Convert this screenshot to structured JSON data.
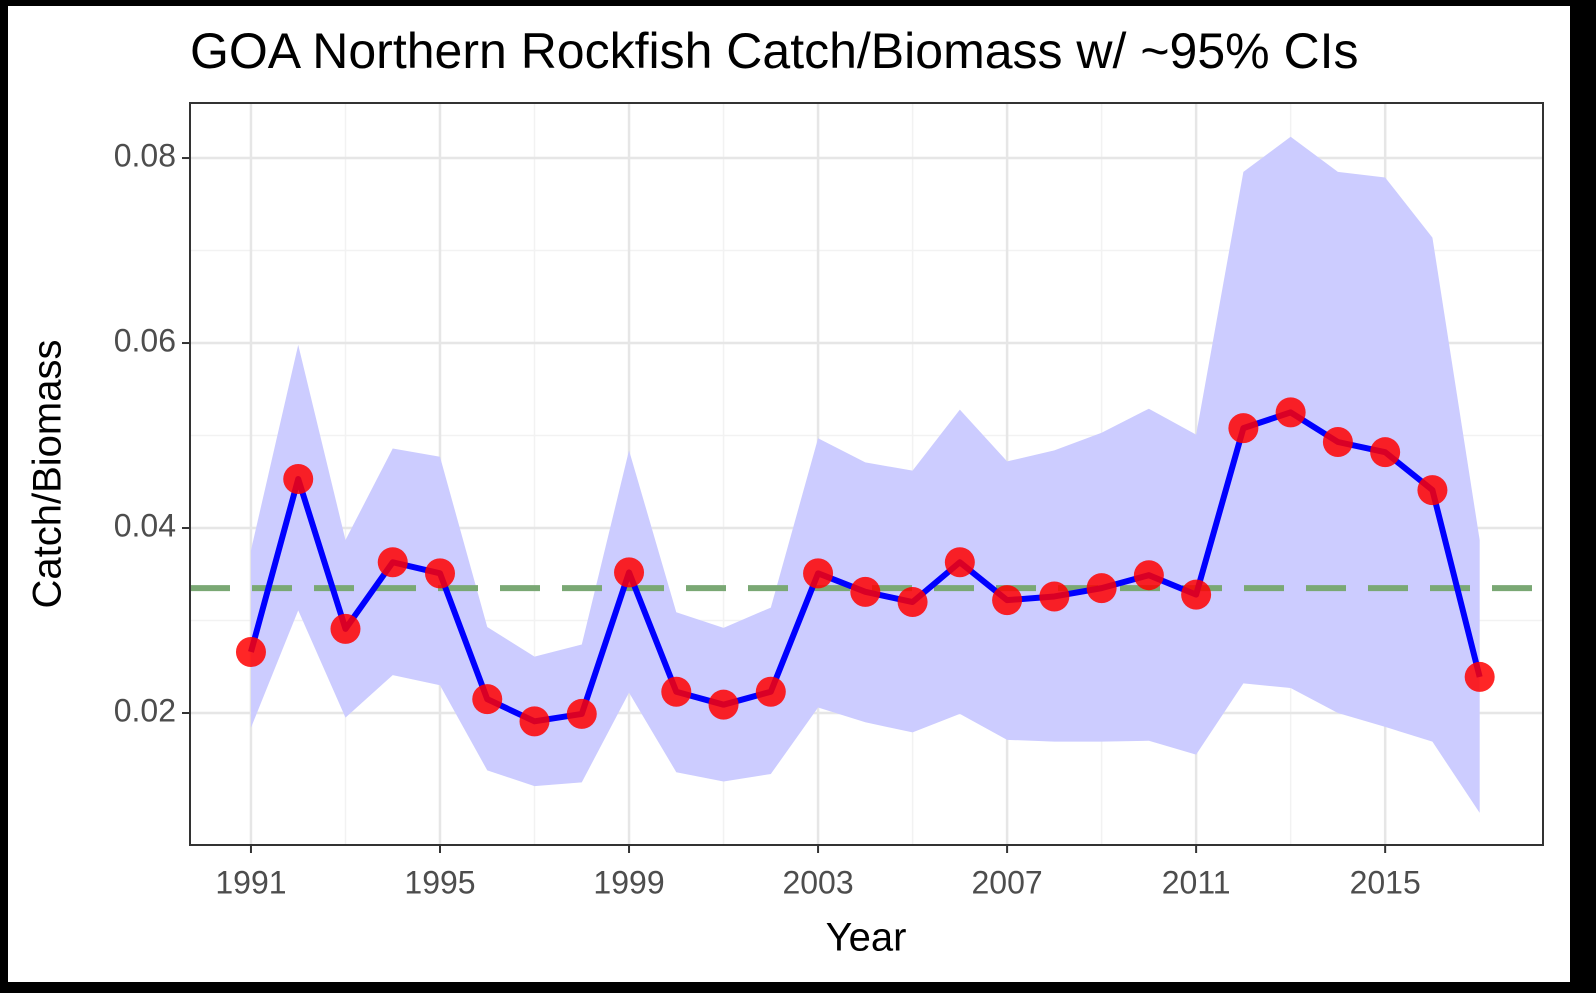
{
  "chart_data": {
    "type": "line",
    "title": "GOA Northern Rockfish Catch/Biomass w/ ~95% CIs",
    "xlabel": "Year",
    "ylabel": "Catch/Biomass",
    "x": [
      1991,
      1992,
      1993,
      1994,
      1995,
      1996,
      1997,
      1998,
      1999,
      2000,
      2001,
      2002,
      2003,
      2004,
      2005,
      2006,
      2007,
      2008,
      2009,
      2010,
      2011,
      2012,
      2013,
      2014,
      2015,
      2016,
      2017
    ],
    "values": [
      0.0266,
      0.0453,
      0.0291,
      0.0363,
      0.0351,
      0.0215,
      0.0191,
      0.0199,
      0.0352,
      0.0223,
      0.0209,
      0.0223,
      0.0351,
      0.0331,
      0.032,
      0.0363,
      0.0322,
      0.0326,
      0.0335,
      0.0349,
      0.0328,
      0.0508,
      0.0525,
      0.0493,
      0.0482,
      0.0441,
      0.0239
    ],
    "upper": [
      0.0376,
      0.0598,
      0.0387,
      0.0486,
      0.0477,
      0.0293,
      0.0261,
      0.0274,
      0.0484,
      0.0309,
      0.0292,
      0.0314,
      0.0497,
      0.0471,
      0.0462,
      0.0528,
      0.0472,
      0.0484,
      0.0503,
      0.0529,
      0.0501,
      0.0785,
      0.0823,
      0.0785,
      0.0779,
      0.0714,
      0.0387
    ],
    "lower": [
      0.0184,
      0.0311,
      0.0195,
      0.0241,
      0.023,
      0.0138,
      0.0121,
      0.0125,
      0.0222,
      0.0136,
      0.0126,
      0.0134,
      0.0206,
      0.019,
      0.0179,
      0.0199,
      0.0171,
      0.0169,
      0.0169,
      0.017,
      0.0155,
      0.0232,
      0.0227,
      0.02,
      0.0185,
      0.0169,
      0.0092
    ],
    "hline": {
      "value": 0.0335,
      "color": "#7aa874"
    },
    "line_color": "#0000ff",
    "point_color": "#ff0000",
    "ribbon_color": "#ccccff",
    "xlim": [
      1989.71,
      2018.34
    ],
    "ylim": [
      0.00573,
      0.08595
    ],
    "xticks": [
      1991,
      1995,
      1999,
      2003,
      2007,
      2011,
      2015
    ],
    "yticks": [
      0.02,
      0.04,
      0.06,
      0.08
    ],
    "grid": true
  }
}
